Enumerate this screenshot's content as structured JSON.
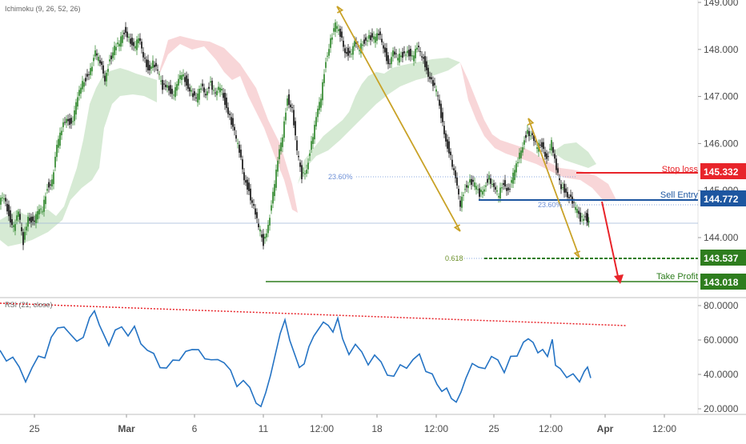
{
  "chart_data": [
    {
      "type": "candlestick",
      "instrument_hint": "",
      "indicator_label": "Ichimoku (9, 26, 52, 26)",
      "y_ticks": [
        "149.000",
        "148.000",
        "147.000",
        "146.000",
        "145.000",
        "144.000"
      ],
      "ylim": [
        143.5,
        149.0
      ],
      "x_ticks": [
        "25",
        "Mar",
        "6",
        "11",
        "12:00",
        "18",
        "12:00",
        "25",
        "12:00",
        "Apr",
        "12:00"
      ],
      "price_path": [
        [
          0,
          144.7
        ],
        [
          6,
          144.9
        ],
        [
          12,
          144.5
        ],
        [
          18,
          144.2
        ],
        [
          24,
          144.5
        ],
        [
          30,
          143.9
        ],
        [
          36,
          144.5
        ],
        [
          42,
          144.3
        ],
        [
          48,
          144.5
        ],
        [
          54,
          144.6
        ],
        [
          60,
          145.1
        ],
        [
          66,
          145.2
        ],
        [
          72,
          145.9
        ],
        [
          78,
          146.3
        ],
        [
          84,
          146.6
        ],
        [
          90,
          146.4
        ],
        [
          96,
          146.8
        ],
        [
          102,
          147.2
        ],
        [
          108,
          147.4
        ],
        [
          114,
          147.6
        ],
        [
          120,
          147.9
        ],
        [
          126,
          147.7
        ],
        [
          132,
          147.4
        ],
        [
          138,
          147.8
        ],
        [
          144,
          148.0
        ],
        [
          150,
          148.1
        ],
        [
          156,
          148.4
        ],
        [
          162,
          148.3
        ],
        [
          168,
          148.0
        ],
        [
          174,
          148.2
        ],
        [
          180,
          147.9
        ],
        [
          186,
          147.6
        ],
        [
          192,
          147.7
        ],
        [
          198,
          147.5
        ],
        [
          204,
          147.2
        ],
        [
          210,
          147.3
        ],
        [
          216,
          147.0
        ],
        [
          222,
          147.2
        ],
        [
          228,
          147.5
        ],
        [
          234,
          147.3
        ],
        [
          240,
          147.1
        ],
        [
          246,
          146.9
        ],
        [
          252,
          147.2
        ],
        [
          258,
          147.1
        ],
        [
          264,
          147.3
        ],
        [
          270,
          147.0
        ],
        [
          276,
          147.2
        ],
        [
          282,
          146.9
        ],
        [
          288,
          146.6
        ],
        [
          294,
          146.2
        ],
        [
          300,
          145.8
        ],
        [
          306,
          145.3
        ],
        [
          312,
          145.0
        ],
        [
          318,
          144.6
        ],
        [
          324,
          144.2
        ],
        [
          330,
          143.9
        ],
        [
          336,
          144.3
        ],
        [
          342,
          144.9
        ],
        [
          348,
          145.6
        ],
        [
          354,
          146.2
        ],
        [
          360,
          147.0
        ],
        [
          366,
          146.7
        ],
        [
          372,
          145.8
        ],
        [
          378,
          145.3
        ],
        [
          384,
          145.5
        ],
        [
          390,
          146.0
        ],
        [
          396,
          146.5
        ],
        [
          402,
          147.0
        ],
        [
          408,
          147.8
        ],
        [
          414,
          148.2
        ],
        [
          420,
          148.5
        ],
        [
          426,
          148.3
        ],
        [
          432,
          148.0
        ],
        [
          438,
          147.9
        ],
        [
          444,
          148.1
        ],
        [
          450,
          148.0
        ],
        [
          456,
          148.2
        ],
        [
          462,
          148.3
        ],
        [
          468,
          148.2
        ],
        [
          474,
          148.3
        ],
        [
          480,
          148.1
        ],
        [
          486,
          147.7
        ],
        [
          492,
          147.9
        ],
        [
          498,
          147.8
        ],
        [
          504,
          147.9
        ],
        [
          510,
          148.0
        ],
        [
          516,
          147.8
        ],
        [
          522,
          148.0
        ],
        [
          528,
          147.9
        ],
        [
          534,
          147.6
        ],
        [
          540,
          147.3
        ],
        [
          546,
          147.1
        ],
        [
          552,
          146.6
        ],
        [
          558,
          146.1
        ],
        [
          564,
          145.7
        ],
        [
          570,
          145.2
        ],
        [
          576,
          144.7
        ],
        [
          582,
          145.1
        ],
        [
          588,
          145.2
        ],
        [
          594,
          145.1
        ],
        [
          600,
          144.9
        ],
        [
          606,
          145.1
        ],
        [
          612,
          145.3
        ],
        [
          618,
          145.0
        ],
        [
          624,
          144.9
        ],
        [
          630,
          145.2
        ],
        [
          636,
          145.0
        ],
        [
          642,
          145.3
        ],
        [
          648,
          145.6
        ],
        [
          654,
          146.0
        ],
        [
          660,
          146.3
        ],
        [
          666,
          146.1
        ],
        [
          672,
          145.9
        ],
        [
          678,
          146.0
        ],
        [
          684,
          145.7
        ],
        [
          690,
          146.0
        ],
        [
          696,
          145.4
        ],
        [
          702,
          145.1
        ],
        [
          708,
          145.0
        ],
        [
          714,
          144.8
        ],
        [
          720,
          144.6
        ],
        [
          726,
          144.4
        ],
        [
          732,
          144.5
        ],
        [
          736,
          144.3
        ]
      ],
      "annotations": {
        "levels": [
          {
            "label": "Stop loss",
            "value": "145.332",
            "color": "#e8242a"
          },
          {
            "label": "Sell Entry",
            "value": "144.772",
            "color": "#1d56a0"
          },
          {
            "label": "",
            "value": "143.537",
            "color": "#2e7d1e"
          },
          {
            "label": "Take Profit",
            "value": "143.018",
            "color": "#2e7d1e"
          }
        ],
        "fib_labels": [
          "23.60%",
          "23.60%",
          "0.618"
        ]
      }
    },
    {
      "type": "line",
      "indicator_label": "RSI (21, close)",
      "y_ticks": [
        "80.0000",
        "60.0000",
        "40.0000",
        "20.0000"
      ],
      "ylim": [
        20,
        80
      ],
      "series": [
        {
          "values": [
            [
              0,
              54
            ],
            [
              8,
              50
            ],
            [
              16,
              48
            ],
            [
              24,
              44
            ],
            [
              32,
              38
            ],
            [
              40,
              42
            ],
            [
              48,
              50
            ],
            [
              56,
              52
            ],
            [
              64,
              60
            ],
            [
              72,
              66
            ],
            [
              80,
              70
            ],
            [
              88,
              62
            ],
            [
              96,
              58
            ],
            [
              104,
              64
            ],
            [
              112,
              72
            ],
            [
              118,
              76
            ],
            [
              124,
              68
            ],
            [
              130,
              62
            ],
            [
              136,
              56
            ],
            [
              144,
              64
            ],
            [
              152,
              70
            ],
            [
              160,
              62
            ],
            [
              168,
              66
            ],
            [
              176,
              60
            ],
            [
              184,
              54
            ],
            [
              192,
              50
            ],
            [
              200,
              46
            ],
            [
              208,
              44
            ],
            [
              216,
              46
            ],
            [
              224,
              50
            ],
            [
              232,
              54
            ],
            [
              240,
              52
            ],
            [
              248,
              56
            ],
            [
              256,
              50
            ],
            [
              264,
              46
            ],
            [
              272,
              50
            ],
            [
              280,
              48
            ],
            [
              288,
              40
            ],
            [
              296,
              34
            ],
            [
              304,
              38
            ],
            [
              312,
              30
            ],
            [
              320,
              24
            ],
            [
              326,
              22
            ],
            [
              332,
              30
            ],
            [
              338,
              40
            ],
            [
              344,
              52
            ],
            [
              350,
              64
            ],
            [
              356,
              72
            ],
            [
              362,
              60
            ],
            [
              368,
              52
            ],
            [
              374,
              44
            ],
            [
              380,
              46
            ],
            [
              386,
              56
            ],
            [
              392,
              62
            ],
            [
              398,
              66
            ],
            [
              404,
              70
            ],
            [
              410,
              68
            ],
            [
              416,
              64
            ],
            [
              422,
              72
            ],
            [
              428,
              60
            ],
            [
              436,
              54
            ],
            [
              444,
              56
            ],
            [
              452,
              52
            ],
            [
              460,
              48
            ],
            [
              468,
              50
            ],
            [
              476,
              46
            ],
            [
              484,
              42
            ],
            [
              492,
              38
            ],
            [
              500,
              44
            ],
            [
              508,
              46
            ],
            [
              516,
              48
            ],
            [
              524,
              50
            ],
            [
              532,
              44
            ],
            [
              540,
              40
            ],
            [
              546,
              34
            ],
            [
              552,
              30
            ],
            [
              558,
              32
            ],
            [
              564,
              26
            ],
            [
              570,
              24
            ],
            [
              576,
              30
            ],
            [
              582,
              38
            ],
            [
              590,
              44
            ],
            [
              598,
              46
            ],
            [
              606,
              44
            ],
            [
              614,
              48
            ],
            [
              622,
              50
            ],
            [
              630,
              42
            ],
            [
              638,
              48
            ],
            [
              646,
              52
            ],
            [
              654,
              60
            ],
            [
              660,
              62
            ],
            [
              666,
              60
            ],
            [
              672,
              54
            ],
            [
              678,
              56
            ],
            [
              684,
              52
            ],
            [
              690,
              62
            ],
            [
              694,
              46
            ],
            [
              700,
              44
            ],
            [
              708,
              40
            ],
            [
              716,
              38
            ],
            [
              724,
              36
            ],
            [
              730,
              42
            ],
            [
              734,
              42
            ],
            [
              738,
              40
            ]
          ]
        }
      ]
    }
  ]
}
